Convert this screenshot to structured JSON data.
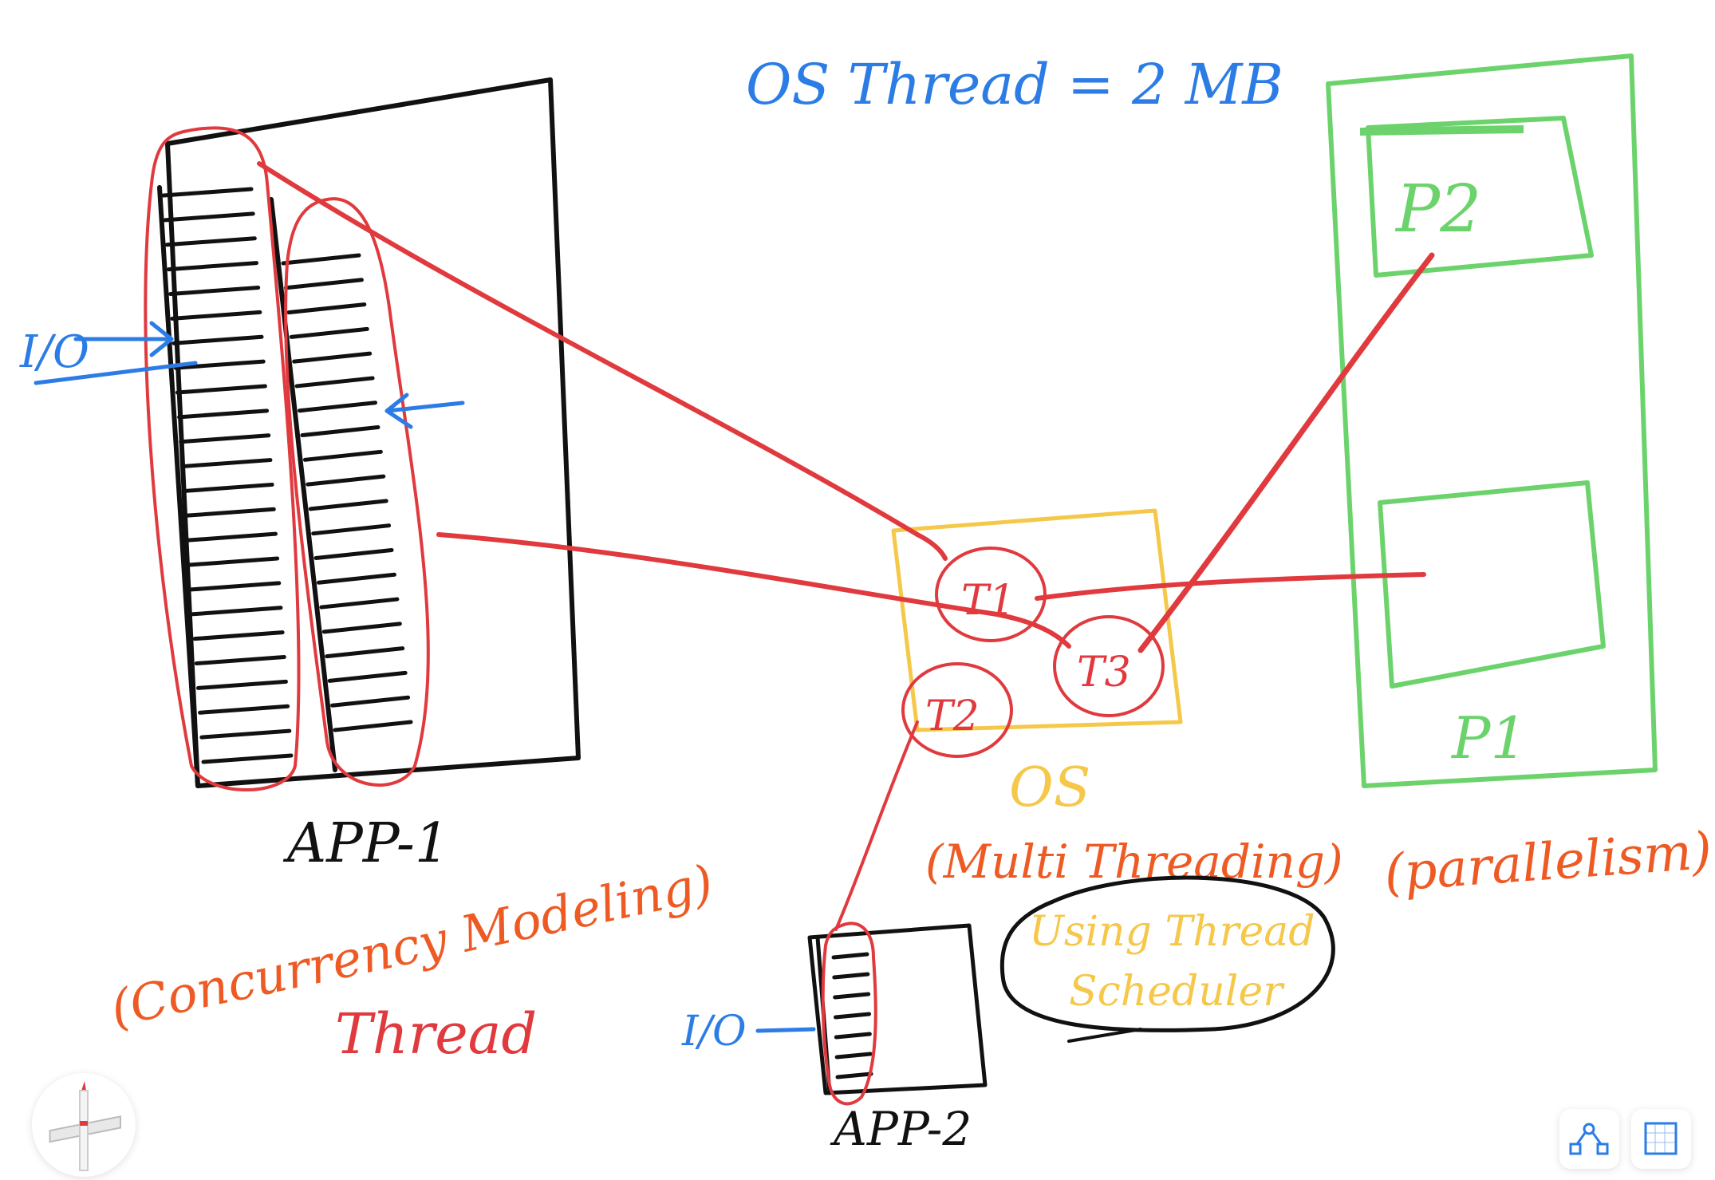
{
  "heading": "OS Thread = 2 MB",
  "app1": {
    "label": "APP-1",
    "caption_line1": "(Concurrency Modeling)",
    "caption_line2": "Thread",
    "io": "I/O"
  },
  "app2": {
    "label": "APP-2",
    "io": "I/O"
  },
  "os": {
    "label": "OS",
    "caption": "(Multi Threading)",
    "scheduler_line1": "Using Thread",
    "scheduler_line2": "Scheduler",
    "threads": [
      "T1",
      "T2",
      "T3"
    ]
  },
  "processors": {
    "p2": "P2",
    "p1": "P1",
    "caption": "(parallelism)"
  },
  "colors": {
    "ink": "#111111",
    "red": "#e03a3e",
    "green": "#6cd36c",
    "yellow": "#f5c84a",
    "blue": "#2c7ce6",
    "orange": "#ee5a24"
  },
  "toolbar": {
    "pencil": "pencil-icon",
    "shapes": "shapes-icon",
    "select": "select-box-icon"
  }
}
